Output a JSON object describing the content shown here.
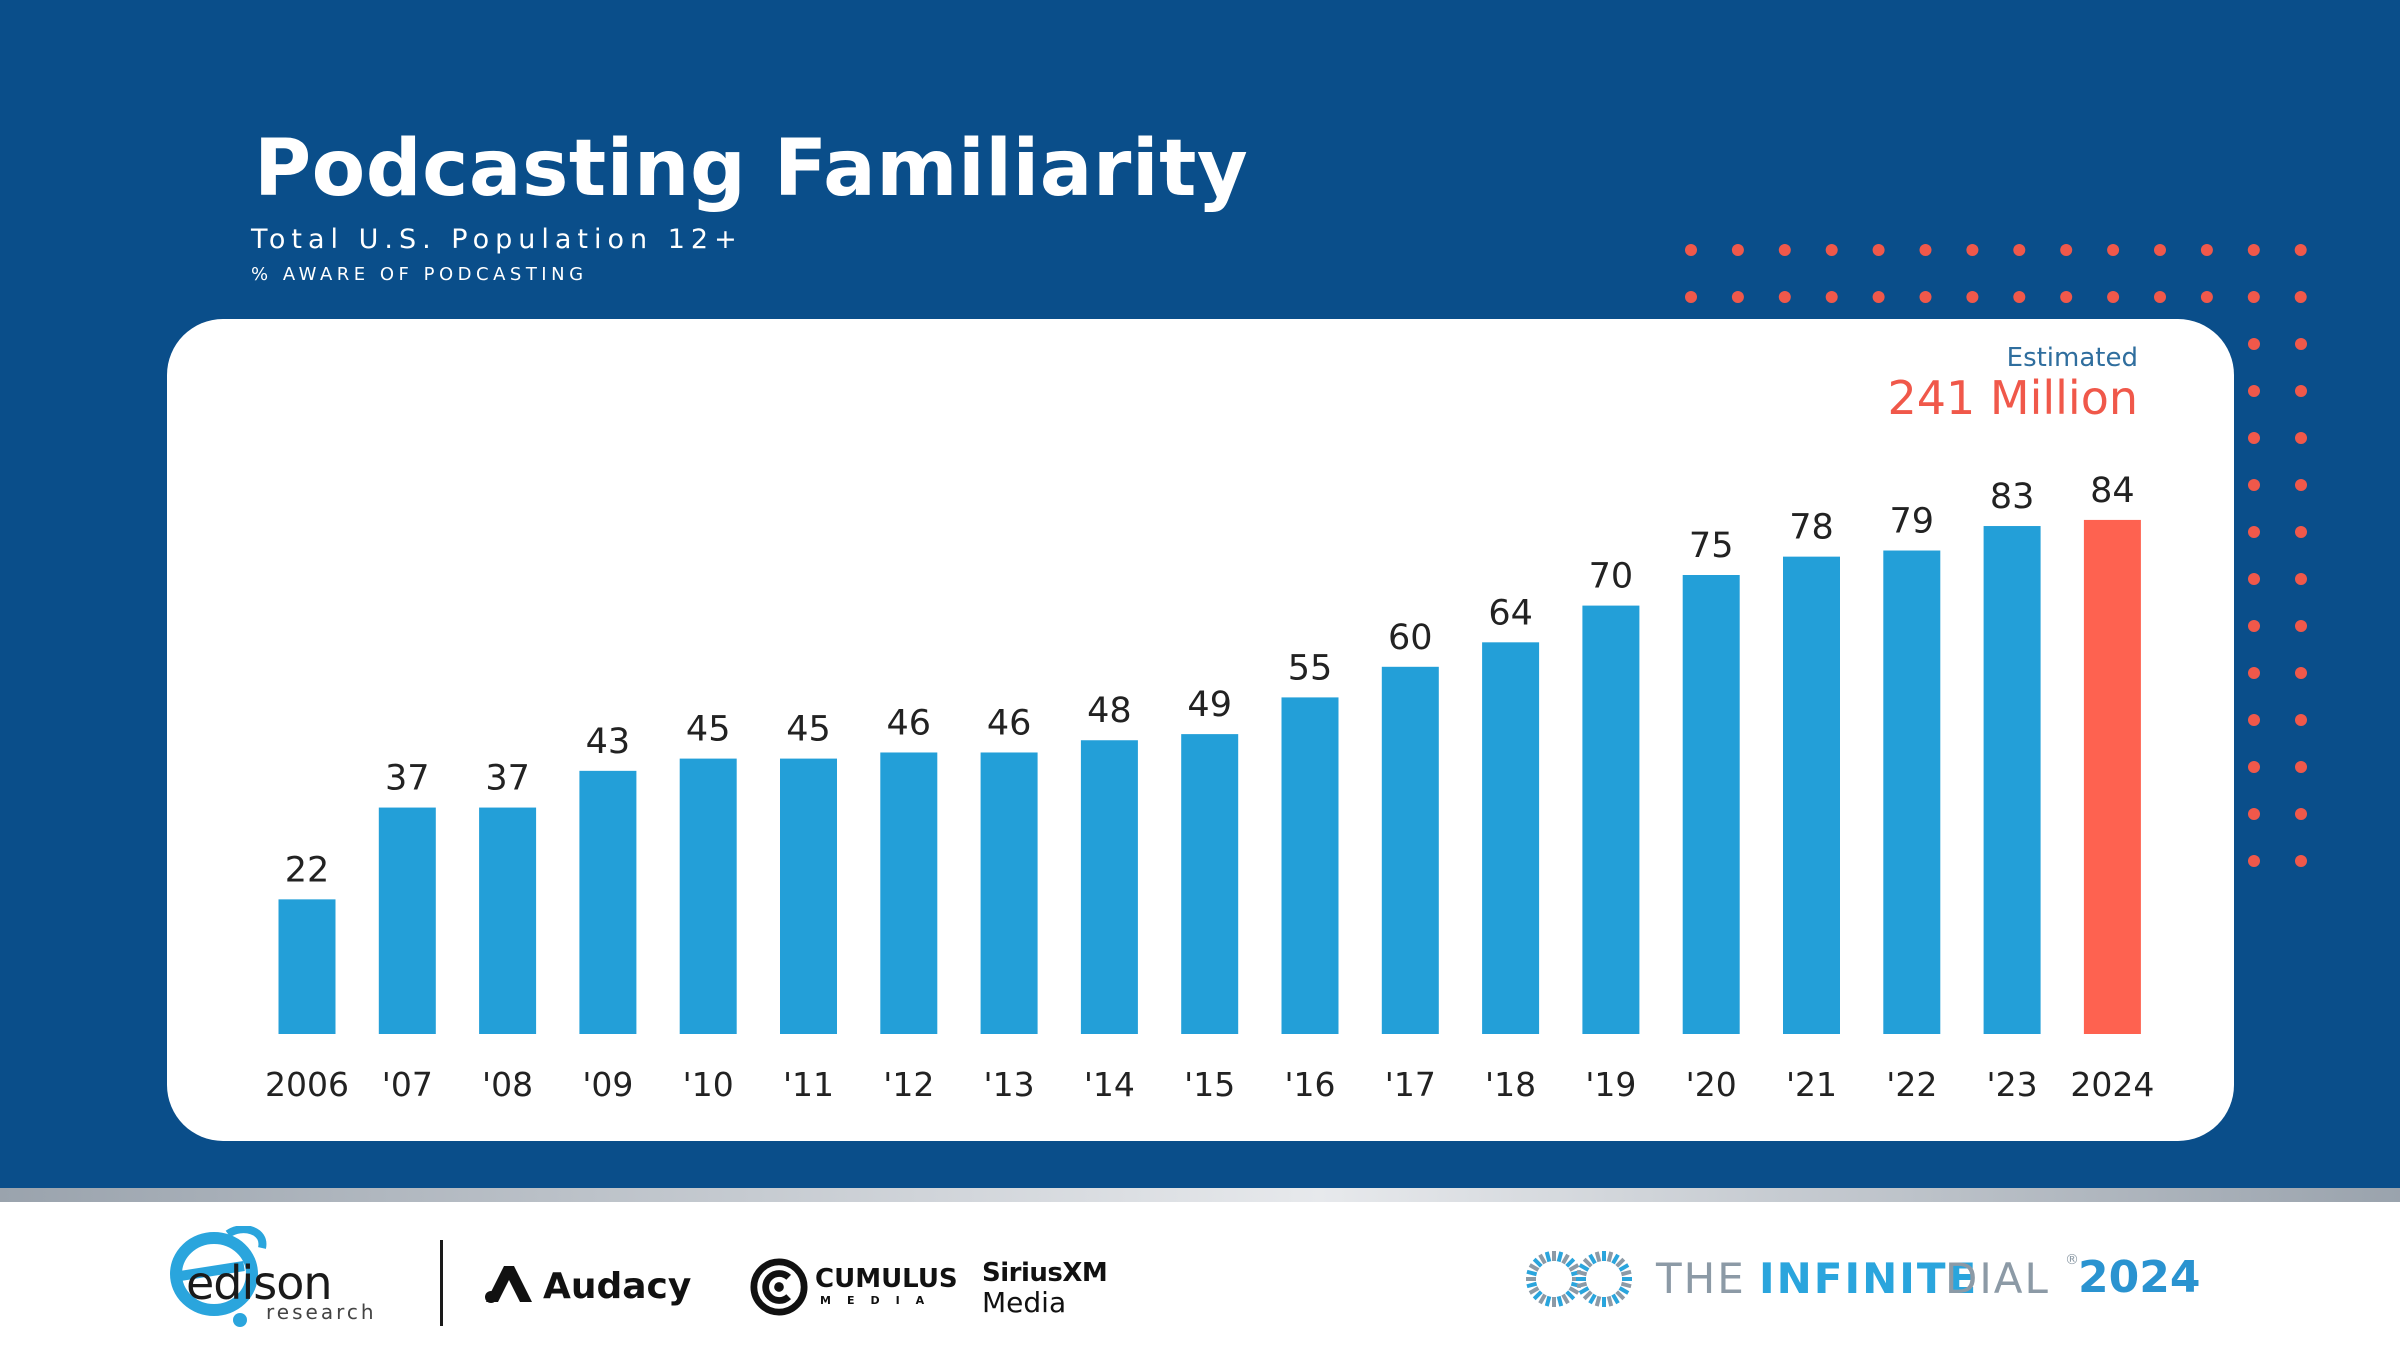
{
  "header": {
    "title": "Podcasting Familiarity",
    "subtitle": "Total U.S. Population 12+",
    "metric": "% AWARE OF PODCASTING"
  },
  "callout": {
    "label": "Estimated",
    "value": "241 Million"
  },
  "colors": {
    "background": "#0a4e8a",
    "bar": "#239fd8",
    "highlight_bar": "#fe6250",
    "dots": "#f0584a",
    "callout_value": "#f0584a"
  },
  "chart_data": {
    "type": "bar",
    "title": "Podcasting Familiarity",
    "subtitle": "Total U.S. Population 12+",
    "ylabel": "% AWARE OF PODCASTING",
    "xlabel": "",
    "categories": [
      "2006",
      "'07",
      "'08",
      "'09",
      "'10",
      "'11",
      "'12",
      "'13",
      "'14",
      "'15",
      "'16",
      "'17",
      "'18",
      "'19",
      "'20",
      "'21",
      "'22",
      "'23",
      "2024"
    ],
    "values": [
      22,
      37,
      37,
      43,
      45,
      45,
      46,
      46,
      48,
      49,
      55,
      60,
      64,
      70,
      75,
      78,
      79,
      83,
      84
    ],
    "ylim": [
      0,
      100
    ],
    "grid": false,
    "legend": "none",
    "highlight_category": "2024",
    "data_labels": true
  },
  "footer": {
    "edison": "edison",
    "edison_sub": "research",
    "audacy": "Audacy",
    "cumulus": "CUMULUS",
    "cumulus_sub": "MEDIA",
    "siriusxm": "SiriusXM",
    "siriusxm_sub": "Media",
    "dial_part1": "THE ",
    "dial_part2": "INFINITE",
    "dial_part3": " DIAL",
    "dial_mark": "®",
    "dial_year": "2024"
  }
}
